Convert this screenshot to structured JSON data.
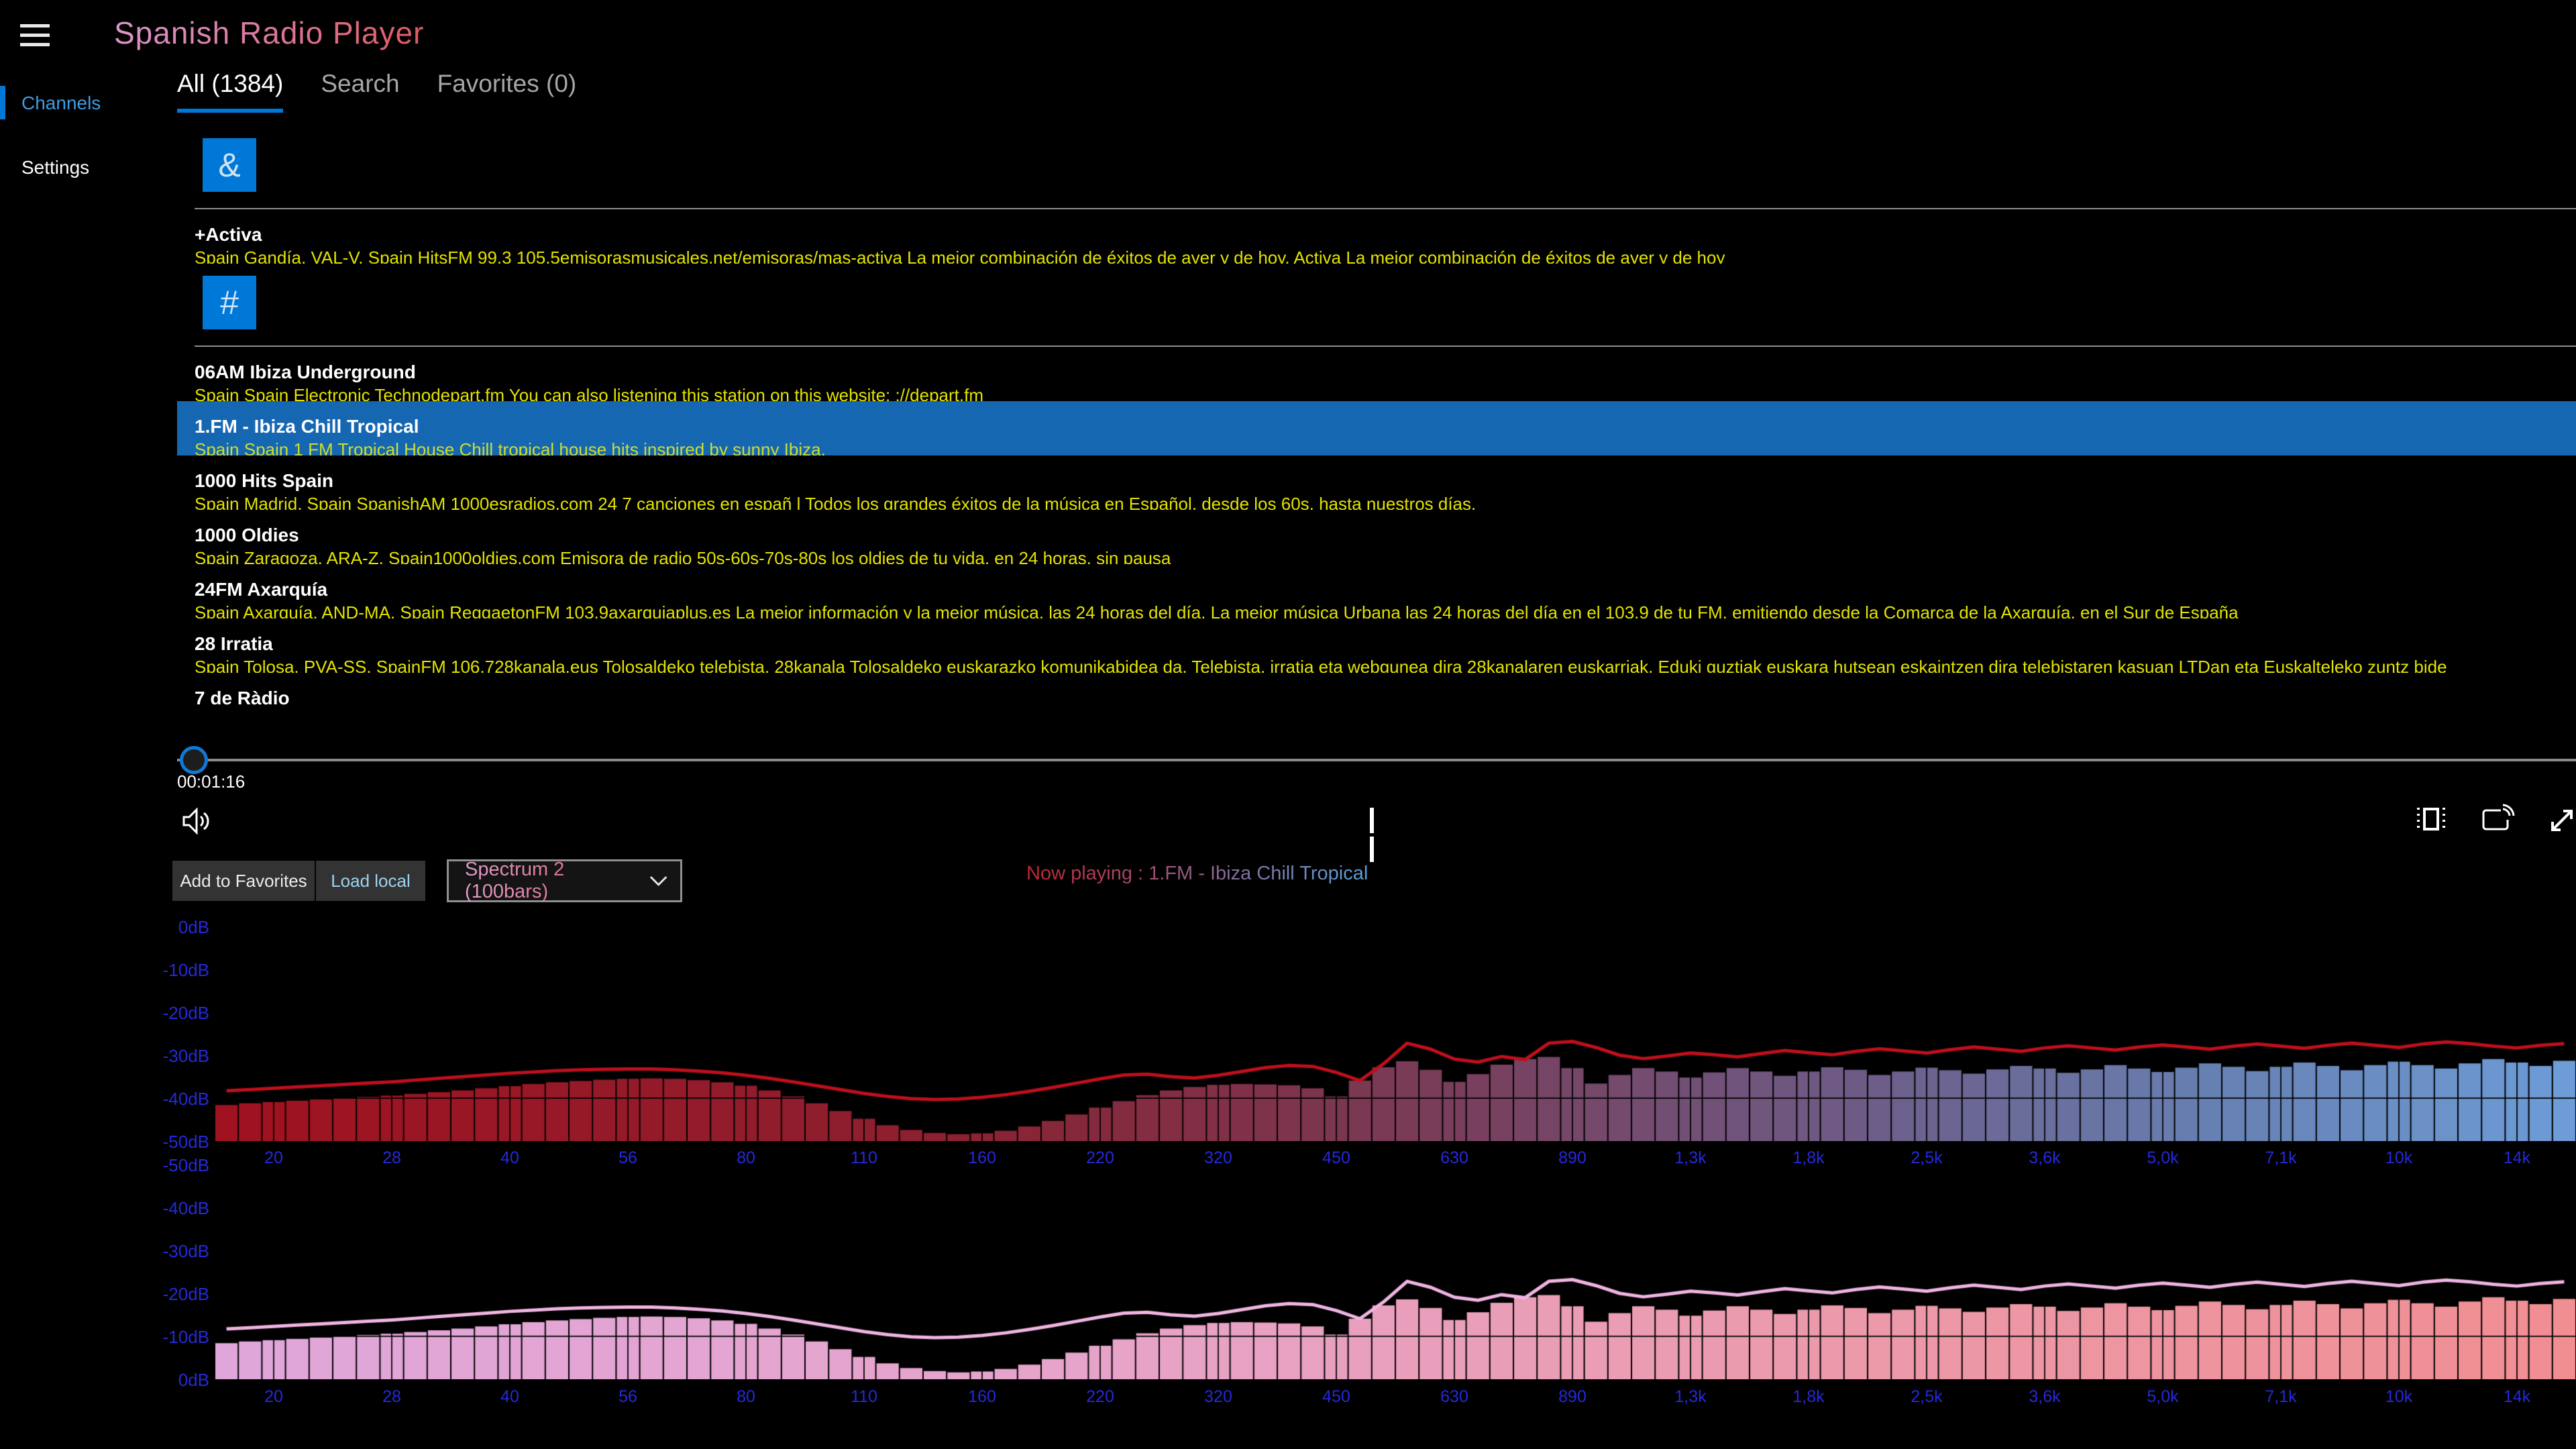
{
  "app": {
    "title": "Spanish Radio Player"
  },
  "colors": {
    "accent": "#0078d7",
    "selection_background": "#1667b2",
    "description_text": "#e3e300",
    "sidebar_active_text": "#3f9ce2",
    "axis_tick_text": "#2629d9",
    "load_local_text": "#9dd3ef"
  },
  "icons": {
    "menu": "hamburger-menu-icon",
    "volume": "volume-icon",
    "pause": "pause-icon",
    "compact_overlay": "compact-overlay-icon",
    "cast": "cast-icon",
    "fullscreen": "fullscreen-icon",
    "dropdown_chevron": "chevron-down-icon"
  },
  "sidebar": {
    "items": [
      {
        "label": "Channels",
        "active": true
      },
      {
        "label": "Settings",
        "active": false
      }
    ]
  },
  "tabs": [
    {
      "label": "All (1384)",
      "active": true
    },
    {
      "label": "Search",
      "active": false
    },
    {
      "label": "Favorites (0)",
      "active": false
    }
  ],
  "station_list": {
    "groups": [
      {
        "letter": "&",
        "stations": [
          {
            "title": "+Activa",
            "desc": "Spain Gandía, VAL-V, Spain HitsFM 99.3 105.5emisorasmusicales.net/emisoras/mas-activa La mejor combinación de éxitos de ayer y de hoy.  Activa La mejor combinación de éxitos de ayer y de hoy",
            "selected": false
          }
        ]
      },
      {
        "letter": "#",
        "stations": [
          {
            "title": "06AM Ibiza Underground",
            "desc": "Spain Spain Electronic Technodepart.fm You can also listening this station on this website: ://depart.fm",
            "selected": false
          },
          {
            "title": "1.FM - Ibiza Chill Tropical",
            "desc": "Spain Spain 1 FM Tropical House  Chill tropical house hits inspired by sunny Ibiza.",
            "selected": true
          },
          {
            "title": "1000 Hits Spain",
            "desc": "Spain Madrid, Spain SpanishAM 1000esradios.com 24 7 canciones en españ l  Todos los grandes éxitos de la música en Español, desde los 60s, hasta nuestros días.",
            "selected": false
          },
          {
            "title": "1000 Oldies",
            "desc": "Spain Zaragoza, ARA-Z, Spain1000oldies.com Emisora de radio 50s-60s-70s-80s los oldies de tu vida, en 24 horas, sin pausa",
            "selected": false
          },
          {
            "title": "24FM Axarquía",
            "desc": "Spain Axarquía, AND-MA, Spain ReggaetonFM 103.9axarquiaplus.es La mejor información y la mejor música, las 24 horas del día.  La mejor música Urbana las 24 horas del día en el 103.9 de tu FM, emitiendo desde la Comarca de la Axarquía, en el Sur de España",
            "selected": false
          },
          {
            "title": "28 Irratia",
            "desc": "Spain Tolosa, PVA-SS, SpainFM 106.728kanala.eus Tolosaldeko telebista.  28kanala Tolosaldeko euskarazko komunikabidea da. Telebista, irratia eta webgunea dira 28kanalaren euskarriak. Eduki guztiak euskara hutsean eskaintzen dira telebistaren kasuan LTDan eta Euskalteleko zuntz bide",
            "selected": false
          },
          {
            "title": "7 de Ràdio",
            "desc": "",
            "selected": false
          }
        ]
      }
    ]
  },
  "player": {
    "elapsed": "00:01:16",
    "state": "playing"
  },
  "controls": {
    "add_favorites_label": "Add to Favorites",
    "load_local_label": "Load local",
    "visualizer_selected": "Spectrum 2 (100bars)",
    "now_playing": "Now playing : 1.FM - Ibiza Chill Tropical"
  },
  "chart_data": [
    {
      "id": "spectrum-top",
      "type": "bar",
      "title": "Audio spectrum (100 bars) with peak-hold line",
      "x_scale": "logarithmic-octave-bands",
      "x_tick_labels": [
        "20",
        "28",
        "40",
        "56",
        "80",
        "110",
        "160",
        "220",
        "320",
        "450",
        "630",
        "890",
        "1,3k",
        "1,8k",
        "2,5k",
        "3,6k",
        "5,0k",
        "7,1k",
        "10k",
        "14k"
      ],
      "y_tick_labels": [
        "0dB",
        "-10dB",
        "-20dB",
        "-30dB",
        "-40dB",
        "-50dB"
      ],
      "ylim": [
        -50,
        0
      ],
      "grid": true,
      "line_color": "#bf0f1c",
      "bar_color_stops": [
        [
          0,
          "#a01220"
        ],
        [
          0.3,
          "#8c2030"
        ],
        [
          0.5,
          "#7a3a55"
        ],
        [
          0.7,
          "#6d5c87"
        ],
        [
          0.85,
          "#6780b2"
        ],
        [
          1,
          "#6d9cd6"
        ]
      ],
      "bar_values_db": [
        -41.6,
        -41.2,
        -40.9,
        -40.6,
        -40.3,
        -40.0,
        -39.7,
        -39.4,
        -39.0,
        -38.6,
        -38.2,
        -37.7,
        -37.2,
        -36.7,
        -36.3,
        -36.0,
        -35.7,
        -35.5,
        -35.4,
        -35.5,
        -35.8,
        -36.3,
        -37.1,
        -38.2,
        -39.6,
        -41.2,
        -43.0,
        -44.8,
        -46.3,
        -47.4,
        -48.1,
        -48.4,
        -48.2,
        -47.6,
        -46.6,
        -45.3,
        -43.8,
        -42.2,
        -40.7,
        -39.3,
        -38.2,
        -37.4,
        -36.9,
        -36.7,
        -36.8,
        -37.0,
        -37.7,
        -39.6,
        -35.9,
        -32.8,
        -31.4,
        -33.4,
        -36.2,
        -34.4,
        -32.2,
        -30.9,
        -30.4,
        -33.0,
        -36.6,
        -34.6,
        -33.0,
        -33.8,
        -35.2,
        -34.0,
        -33.0,
        -33.8,
        -34.8,
        -33.8,
        -32.8,
        -33.4,
        -34.6,
        -33.8,
        -32.9,
        -33.5,
        -34.3,
        -33.3,
        -32.5,
        -33.1,
        -34.1,
        -33.3,
        -32.3,
        -33.1,
        -33.9,
        -32.9,
        -31.9,
        -32.7,
        -33.7,
        -32.7,
        -31.7,
        -32.5,
        -33.5,
        -32.3,
        -31.5,
        -32.3,
        -33.1,
        -31.9,
        -30.9,
        -31.7,
        -32.5,
        -31.3
      ],
      "peak_line_db": [
        -38.3,
        -38.0,
        -37.7,
        -37.4,
        -37.1,
        -36.8,
        -36.5,
        -36.2,
        -35.8,
        -35.4,
        -35.0,
        -34.6,
        -34.2,
        -33.9,
        -33.6,
        -33.4,
        -33.3,
        -33.2,
        -33.2,
        -33.4,
        -33.7,
        -34.1,
        -34.7,
        -35.4,
        -36.2,
        -37.1,
        -38.0,
        -38.9,
        -39.6,
        -40.1,
        -40.3,
        -40.2,
        -39.8,
        -39.2,
        -38.4,
        -37.5,
        -36.5,
        -35.5,
        -34.6,
        -34.4,
        -35.0,
        -35.3,
        -34.7,
        -33.8,
        -32.9,
        -32.4,
        -32.6,
        -34.0,
        -35.9,
        -32.0,
        -27.2,
        -28.6,
        -30.9,
        -31.6,
        -30.3,
        -31.0,
        -27.2,
        -26.8,
        -28.2,
        -30.0,
        -30.8,
        -30.2,
        -29.5,
        -29.9,
        -30.4,
        -29.6,
        -28.9,
        -29.4,
        -29.9,
        -29.1,
        -28.5,
        -29.0,
        -29.5,
        -28.7,
        -28.1,
        -28.6,
        -29.1,
        -28.3,
        -27.8,
        -28.3,
        -28.8,
        -28.1,
        -27.6,
        -28.1,
        -28.6,
        -27.9,
        -27.4,
        -27.9,
        -28.4,
        -27.7,
        -27.2,
        -27.7,
        -28.2,
        -27.4,
        -26.9,
        -27.3,
        -27.9,
        -28.3,
        -27.7,
        -27.3
      ]
    },
    {
      "id": "spectrum-bottom",
      "type": "bar",
      "title": "Audio spectrum (100 bars) mirrored style, inverted dB axis labels",
      "x_scale": "logarithmic-octave-bands",
      "x_tick_labels": [
        "20",
        "28",
        "40",
        "56",
        "80",
        "110",
        "160",
        "220",
        "320",
        "450",
        "630",
        "890",
        "1,3k",
        "1,8k",
        "2,5k",
        "3,6k",
        "5,0k",
        "7,1k",
        "10k",
        "14k"
      ],
      "y_tick_labels": [
        "-50dB",
        "-40dB",
        "-30dB",
        "-20dB",
        "-10dB",
        "0dB"
      ],
      "ylim": [
        -50,
        0
      ],
      "grid": true,
      "line_color": "#f0b4e2",
      "bar_color_stops": [
        [
          0,
          "#dfa6da"
        ],
        [
          0.35,
          "#e6a4cb"
        ],
        [
          0.65,
          "#eb9bae"
        ],
        [
          1,
          "#f08e92"
        ]
      ],
      "values_same_as": "spectrum-top"
    }
  ]
}
